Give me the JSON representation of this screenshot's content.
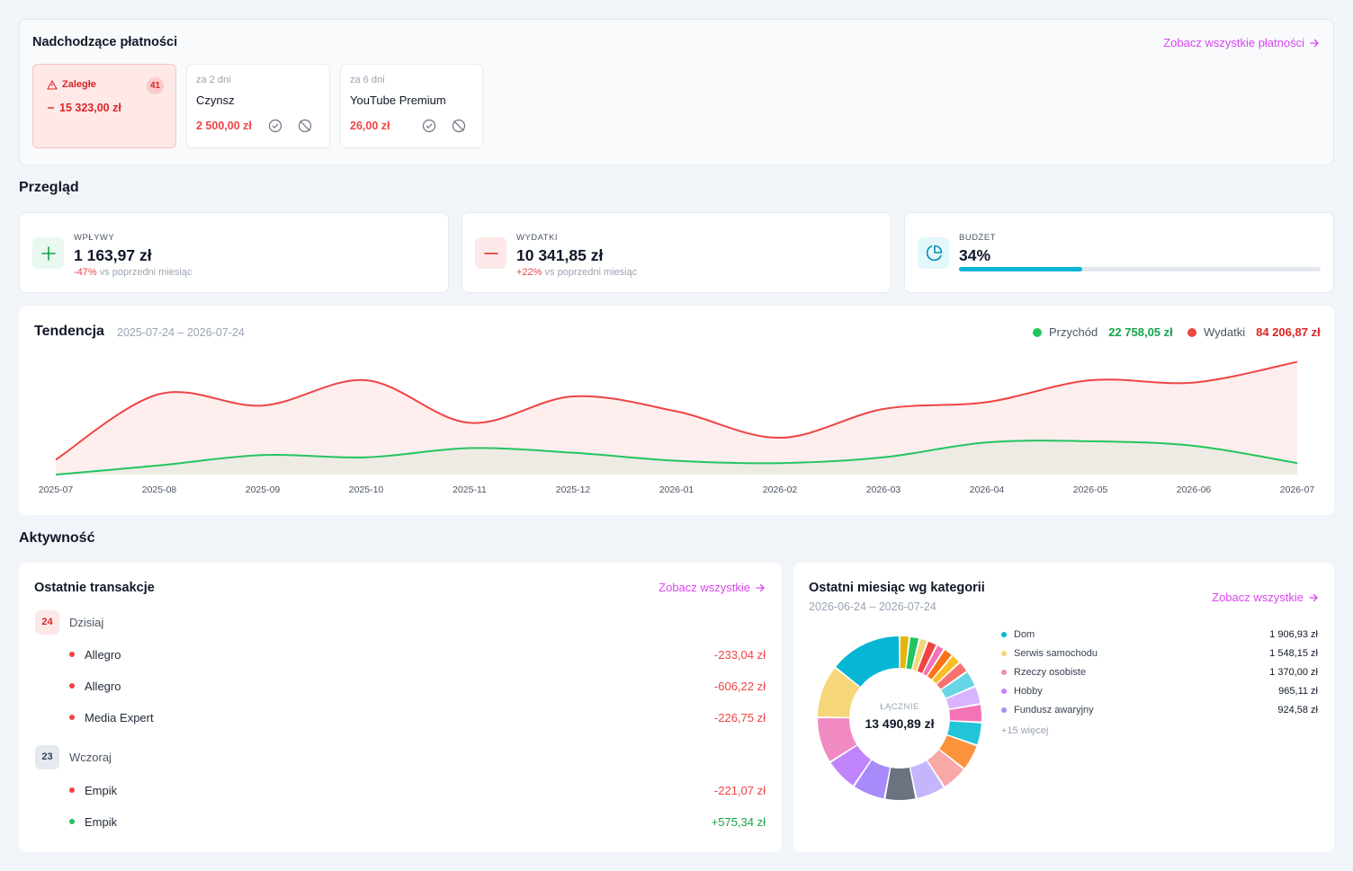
{
  "upcoming": {
    "title": "Nadchodzące płatności",
    "see_all": "Zobacz wszystkie płatności",
    "overdue": {
      "label": "Zaległe",
      "count": "41",
      "amount": "15 323,00 zł"
    },
    "items": [
      {
        "due": "za 2 dni",
        "name": "Czynsz",
        "amount": "2 500,00 zł"
      },
      {
        "due": "za 6 dni",
        "name": "YouTube Premium",
        "amount": "26,00 zł"
      }
    ]
  },
  "overview": {
    "title": "Przegląd",
    "income": {
      "label": "WPŁYWY",
      "value": "1 163,97 zł",
      "change": "-47%",
      "change_text": "vs poprzedni miesiąc"
    },
    "expenses": {
      "label": "WYDATKI",
      "value": "10 341,85 zł",
      "change": "+22%",
      "change_text": "vs poprzedni miesiąc"
    },
    "budget": {
      "label": "BUDŻET",
      "value": "34%",
      "progress": 0.34
    }
  },
  "trend": {
    "title": "Tendencja",
    "range": "2025-07-24 – 2026-07-24",
    "legend": [
      {
        "name": "Przychód",
        "total": "22 758,05 zł",
        "color": "#22c55e"
      },
      {
        "name": "Wydatki",
        "total": "84 206,87 zł",
        "color": "#ef4444"
      }
    ]
  },
  "chart_data": {
    "type": "area",
    "x": [
      "2025-07",
      "2025-08",
      "2025-09",
      "2025-10",
      "2025-11",
      "2025-12",
      "2026-01",
      "2026-02",
      "2026-03",
      "2026-04",
      "2026-05",
      "2026-06",
      "2026-07"
    ],
    "series": [
      {
        "name": "Wydatki",
        "values": [
          13,
          70,
          60,
          82,
          45,
          68,
          55,
          32,
          57,
          63,
          82,
          80,
          98
        ]
      },
      {
        "name": "Przychód",
        "values": [
          0,
          8,
          17,
          15,
          23,
          19,
          12,
          10,
          15,
          28,
          29,
          25,
          10
        ]
      }
    ],
    "ylim": [
      0,
      100
    ],
    "grid": false,
    "legend": "top-right"
  },
  "activity": {
    "title": "Aktywność",
    "transactions": {
      "title": "Ostatnie transakcje",
      "see_all": "Zobacz wszystkie",
      "groups": [
        {
          "day": "24",
          "label": "Dzisiaj",
          "items": [
            {
              "name": "Allegro",
              "amount": "-233,04 zł"
            },
            {
              "name": "Allegro",
              "amount": "-606,22 zł"
            },
            {
              "name": "Media Expert",
              "amount": "-226,75 zł"
            }
          ]
        },
        {
          "day": "23",
          "label": "Wczoraj",
          "items": [
            {
              "name": "Empik",
              "amount": "-221,07 zł"
            },
            {
              "name": "Empik",
              "amount": "+575,34 zł"
            }
          ]
        }
      ]
    },
    "categories": {
      "title": "Ostatni miesiąc wg kategorii",
      "range": "2026-06-24 – 2026-07-24",
      "see_all": "Zobacz wszystkie",
      "total_label": "ŁĄCZNIE",
      "total": "13 490,89 zł",
      "items": [
        {
          "name": "Dom",
          "value": "1 906,93 zł",
          "color": "#06b6d4"
        },
        {
          "name": "Serwis samochodu",
          "value": "1 548,15 zł",
          "color": "#f5d67a"
        },
        {
          "name": "Rzeczy osobiste",
          "value": "1 370,00 zł",
          "color": "#f08ac0"
        },
        {
          "name": "Hobby",
          "value": "965,11 zł",
          "color": "#c084fc"
        },
        {
          "name": "Fundusz awaryjny",
          "value": "924,58 zł",
          "color": "#a78bfa"
        }
      ],
      "more": "+15 więcej"
    }
  }
}
